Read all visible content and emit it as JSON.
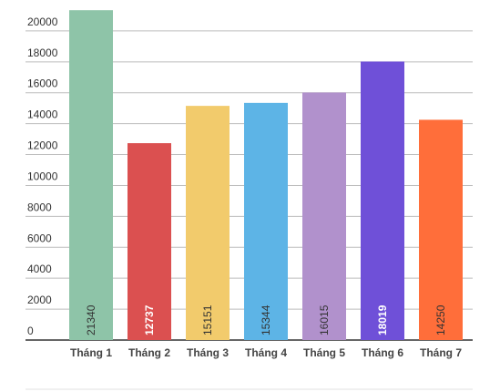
{
  "chart_data": {
    "type": "bar",
    "categories": [
      "Tháng 1",
      "Tháng 2",
      "Tháng 3",
      "Tháng 4",
      "Tháng 5",
      "Tháng 6",
      "Tháng 7"
    ],
    "values": [
      21340,
      12737,
      15151,
      15344,
      16015,
      18019,
      14250
    ],
    "colors": [
      "#8ec4a8",
      "#db5050",
      "#f2cb6c",
      "#5db4e6",
      "#b191cc",
      "#6f50d8",
      "#ff6e3a"
    ],
    "value_label_colors": [
      "#333333",
      "#ffffff",
      "#333333",
      "#333333",
      "#333333",
      "#ffffff",
      "#333333"
    ],
    "ylim": [
      0,
      22000
    ],
    "yticks": [
      0,
      2000,
      4000,
      6000,
      8000,
      10000,
      12000,
      14000,
      16000,
      18000,
      20000
    ],
    "grid": true
  }
}
